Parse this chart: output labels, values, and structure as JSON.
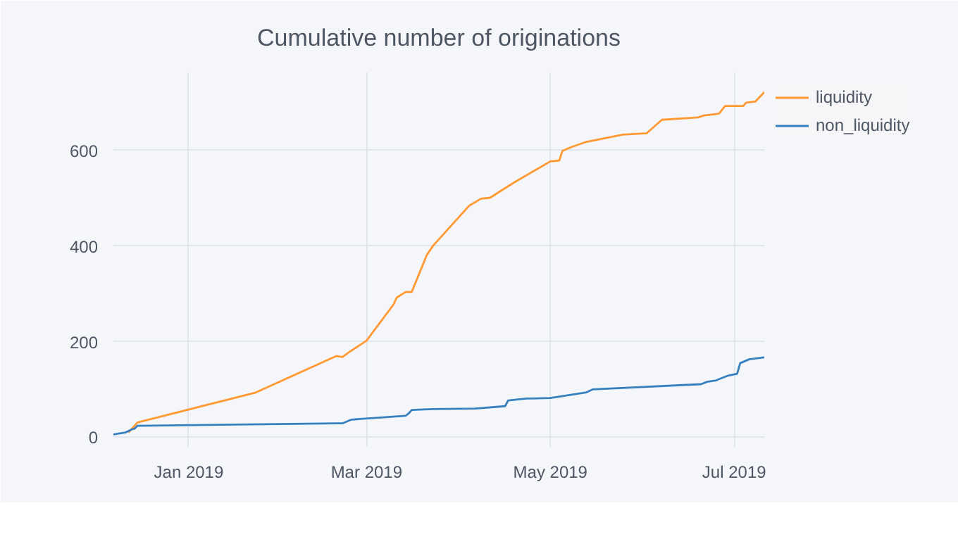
{
  "chart_data": {
    "type": "line",
    "title": "Cumulative number of originations",
    "xlim": [
      "2018-12-07",
      "2019-07-11"
    ],
    "ylim": [
      -20,
      763
    ],
    "xticks": [
      {
        "value": "2019-01-01",
        "label": "Jan 2019"
      },
      {
        "value": "2019-03-01",
        "label": "Mar 2019"
      },
      {
        "value": "2019-05-01",
        "label": "May 2019"
      },
      {
        "value": "2019-07-01",
        "label": "Jul 2019"
      }
    ],
    "yticks": [
      0,
      200,
      400,
      600
    ],
    "grid": true,
    "legend": "top right",
    "line_style": "solid",
    "series": [
      {
        "name": "liquidity",
        "color": "#ff9933",
        "x": [
          "2018-12-12",
          "2018-12-15",
          "2019-01-23",
          "2019-02-19",
          "2019-02-21",
          "2019-02-23",
          "2019-03-01",
          "2019-03-10",
          "2019-03-11",
          "2019-03-14",
          "2019-03-16",
          "2019-03-21",
          "2019-03-23",
          "2019-04-04",
          "2019-04-08",
          "2019-04-11",
          "2019-04-19",
          "2019-05-01",
          "2019-05-04",
          "2019-05-05",
          "2019-05-08",
          "2019-05-13",
          "2019-05-25",
          "2019-06-02",
          "2019-06-07",
          "2019-06-19",
          "2019-06-21",
          "2019-06-26",
          "2019-06-28",
          "2019-07-04",
          "2019-07-05",
          "2019-07-08",
          "2019-07-11"
        ],
        "values": [
          10,
          31,
          93,
          170,
          168,
          177,
          202,
          278,
          292,
          304,
          304,
          381,
          400,
          484,
          499,
          501,
          533,
          577,
          579,
          599,
          607,
          618,
          633,
          636,
          664,
          669,
          673,
          677,
          693,
          693,
          700,
          702,
          722
        ]
      },
      {
        "name": "non_liquidity",
        "color": "#3780bf",
        "x": [
          "2018-12-07",
          "2018-12-11",
          "2018-12-13",
          "2018-12-14",
          "2018-12-15",
          "2019-02-19",
          "2019-02-21",
          "2019-02-24",
          "2019-03-14",
          "2019-03-15",
          "2019-03-16",
          "2019-03-23",
          "2019-04-06",
          "2019-04-16",
          "2019-04-17",
          "2019-04-23",
          "2019-05-01",
          "2019-05-13",
          "2019-05-15",
          "2019-06-20",
          "2019-06-22",
          "2019-06-25",
          "2019-06-29",
          "2019-07-02",
          "2019-07-03",
          "2019-07-06",
          "2019-07-11"
        ],
        "values": [
          6,
          10,
          16,
          18,
          24,
          29,
          29,
          37,
          45,
          50,
          57,
          59,
          60,
          65,
          77,
          81,
          82,
          94,
          100,
          111,
          116,
          119,
          129,
          133,
          155,
          163,
          167
        ]
      }
    ]
  }
}
